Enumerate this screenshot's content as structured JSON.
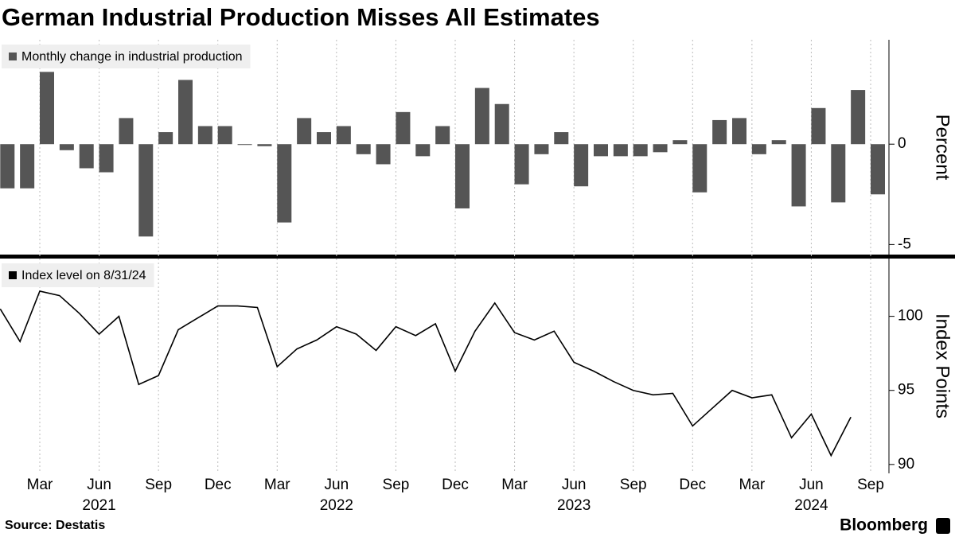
{
  "title": "German Industrial Production Misses All Estimates",
  "source": "Source: Destatis",
  "brand": "Bloomberg",
  "x_axis": {
    "x": [
      "2021-01",
      "2021-02",
      "2021-03",
      "2021-04",
      "2021-05",
      "2021-06",
      "2021-07",
      "2021-08",
      "2021-09",
      "2021-10",
      "2021-11",
      "2021-12",
      "2022-01",
      "2022-02",
      "2022-03",
      "2022-04",
      "2022-05",
      "2022-06",
      "2022-07",
      "2022-08",
      "2022-09",
      "2022-10",
      "2022-11",
      "2022-12",
      "2023-01",
      "2023-02",
      "2023-03",
      "2023-04",
      "2023-05",
      "2023-06",
      "2023-07",
      "2023-08",
      "2023-09",
      "2023-10",
      "2023-11",
      "2023-12",
      "2024-01",
      "2024-02",
      "2024-03",
      "2024-04",
      "2024-05",
      "2024-06",
      "2024-07",
      "2024-08",
      "2024-09"
    ],
    "ticks": [
      {
        "value": "2021-03",
        "label": "Mar"
      },
      {
        "value": "2021-06",
        "label": "Jun"
      },
      {
        "value": "2021-09",
        "label": "Sep"
      },
      {
        "value": "2021-12",
        "label": "Dec"
      },
      {
        "value": "2022-03",
        "label": "Mar"
      },
      {
        "value": "2022-06",
        "label": "Jun"
      },
      {
        "value": "2022-09",
        "label": "Sep"
      },
      {
        "value": "2022-12",
        "label": "Dec"
      },
      {
        "value": "2023-03",
        "label": "Mar"
      },
      {
        "value": "2023-06",
        "label": "Jun"
      },
      {
        "value": "2023-09",
        "label": "Sep"
      },
      {
        "value": "2023-12",
        "label": "Dec"
      },
      {
        "value": "2024-03",
        "label": "Mar"
      },
      {
        "value": "2024-06",
        "label": "Jun"
      },
      {
        "value": "2024-09",
        "label": "Sep"
      }
    ],
    "years": [
      {
        "value": "2021-06",
        "label": "2021"
      },
      {
        "value": "2022-06",
        "label": "2022"
      },
      {
        "value": "2023-06",
        "label": "2023"
      },
      {
        "value": "2024-06",
        "label": "2024"
      }
    ]
  },
  "chart_data": [
    {
      "type": "bar",
      "ylabel": "Percent",
      "ylim": [
        -5.5,
        5.2
      ],
      "yticks": [
        0,
        -5
      ],
      "series": [
        {
          "name": "Monthly change in industrial production",
          "color": "#555555",
          "values": [
            -2.2,
            -2.2,
            3.6,
            -0.3,
            -1.2,
            -1.4,
            1.3,
            -4.6,
            0.6,
            3.2,
            0.9,
            0.9,
            0,
            -0.1,
            -3.9,
            1.3,
            0.6,
            0.9,
            -0.5,
            -1.0,
            1.6,
            -0.6,
            0.9,
            -3.2,
            2.8,
            2.0,
            -2.0,
            -0.5,
            0.6,
            -2.1,
            -0.6,
            -0.6,
            -0.6,
            -0.4,
            0.2,
            -2.4,
            1.2,
            1.3,
            -0.5,
            0.2,
            -3.1,
            1.8,
            -2.9,
            2.7,
            -2.5
          ]
        }
      ]
    },
    {
      "type": "line",
      "ylabel": "Index Points",
      "ylim": [
        89.4,
        103.9
      ],
      "yticks": [
        100,
        95,
        90
      ],
      "series": [
        {
          "name": "Index level on 8/31/24",
          "color": "#000000",
          "values": [
            100.5,
            98.3,
            101.7,
            101.4,
            100.2,
            98.8,
            100.0,
            95.4,
            96.0,
            99.1,
            99.9,
            100.7,
            100.7,
            100.6,
            96.6,
            97.8,
            98.4,
            99.3,
            98.8,
            97.7,
            99.3,
            98.7,
            99.5,
            96.3,
            99.0,
            100.9,
            98.9,
            98.4,
            99.0,
            96.9,
            96.3,
            95.6,
            95.0,
            94.7,
            94.8,
            92.6,
            93.8,
            95.0,
            94.5,
            94.7,
            91.8,
            93.4,
            90.6,
            93.2,
            null
          ]
        }
      ]
    }
  ]
}
